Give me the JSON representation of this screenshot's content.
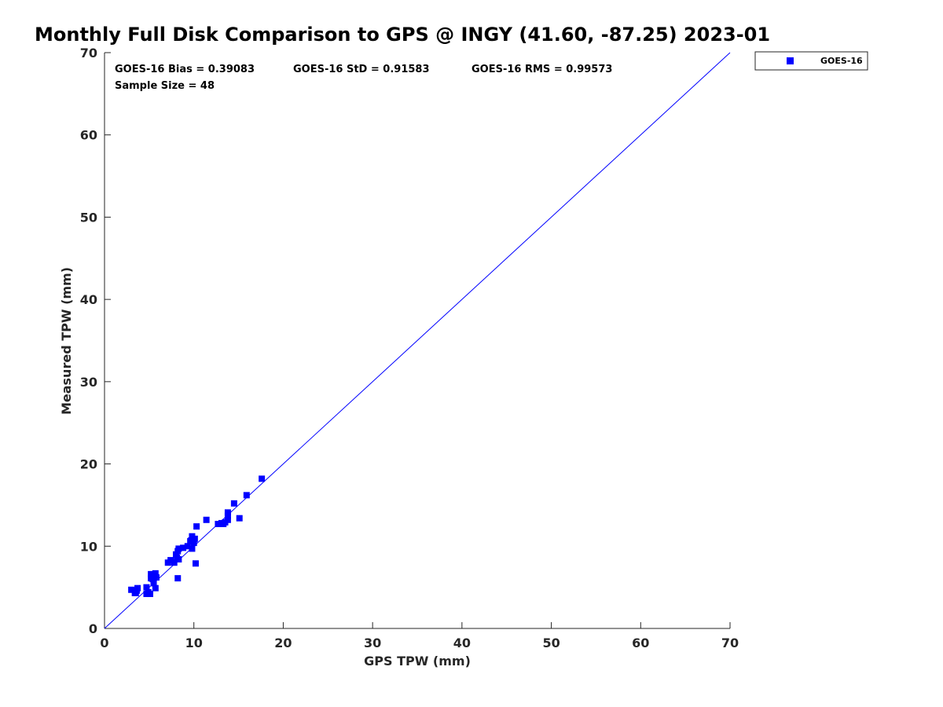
{
  "chart_data": {
    "type": "scatter",
    "title": "Monthly Full Disk Comparison to GPS @ INGY (41.60, -87.25) 2023-01",
    "xlabel": "GPS TPW (mm)",
    "ylabel": "Measured TPW (mm)",
    "xlim": [
      0,
      70
    ],
    "ylim": [
      0,
      70
    ],
    "xticks": [
      "0",
      "10",
      "20",
      "30",
      "40",
      "50",
      "60",
      "70"
    ],
    "yticks": [
      "0",
      "10",
      "20",
      "30",
      "40",
      "50",
      "60",
      "70"
    ],
    "grid": false,
    "legend_position": "outside-top-right",
    "reference_line": "one-to-one",
    "stats": {
      "bias": "GOES-16 Bias = 0.39083",
      "std": "GOES-16 StD = 0.91583",
      "rms": "GOES-16 RMS = 0.99573",
      "sample": "Sample Size = 48"
    },
    "series": [
      {
        "name": "GOES-16",
        "color": "#0000ff",
        "marker": "square",
        "points": [
          [
            3.0,
            4.7
          ],
          [
            3.4,
            4.3
          ],
          [
            3.6,
            4.6
          ],
          [
            3.7,
            4.9
          ],
          [
            3.5,
            4.3
          ],
          [
            4.7,
            5.0
          ],
          [
            4.7,
            4.2
          ],
          [
            5.1,
            4.2
          ],
          [
            4.9,
            4.4
          ],
          [
            5.7,
            4.9
          ],
          [
            5.2,
            6.1
          ],
          [
            5.2,
            6.6
          ],
          [
            5.4,
            6.0
          ],
          [
            5.5,
            6.4
          ],
          [
            5.7,
            6.7
          ],
          [
            5.8,
            6.2
          ],
          [
            5.5,
            5.5
          ],
          [
            7.1,
            8.0
          ],
          [
            7.4,
            8.3
          ],
          [
            7.8,
            8.0
          ],
          [
            8.1,
            8.6
          ],
          [
            8.3,
            8.4
          ],
          [
            8.0,
            9.0
          ],
          [
            8.2,
            9.4
          ],
          [
            8.3,
            9.7
          ],
          [
            8.2,
            6.1
          ],
          [
            8.8,
            9.8
          ],
          [
            9.3,
            10.0
          ],
          [
            9.6,
            10.6
          ],
          [
            9.8,
            11.2
          ],
          [
            10.1,
            10.9
          ],
          [
            10.0,
            10.4
          ],
          [
            9.8,
            9.7
          ],
          [
            10.2,
            7.9
          ],
          [
            10.3,
            12.4
          ],
          [
            11.4,
            13.2
          ],
          [
            12.7,
            12.7
          ],
          [
            13.1,
            12.8
          ],
          [
            13.5,
            12.9
          ],
          [
            13.8,
            13.2
          ],
          [
            13.8,
            13.7
          ],
          [
            13.8,
            14.1
          ],
          [
            14.5,
            15.2
          ],
          [
            15.1,
            13.4
          ],
          [
            15.9,
            16.2
          ],
          [
            17.6,
            18.2
          ],
          [
            9.7,
            10.7
          ],
          [
            13.3,
            12.7
          ]
        ]
      }
    ]
  }
}
